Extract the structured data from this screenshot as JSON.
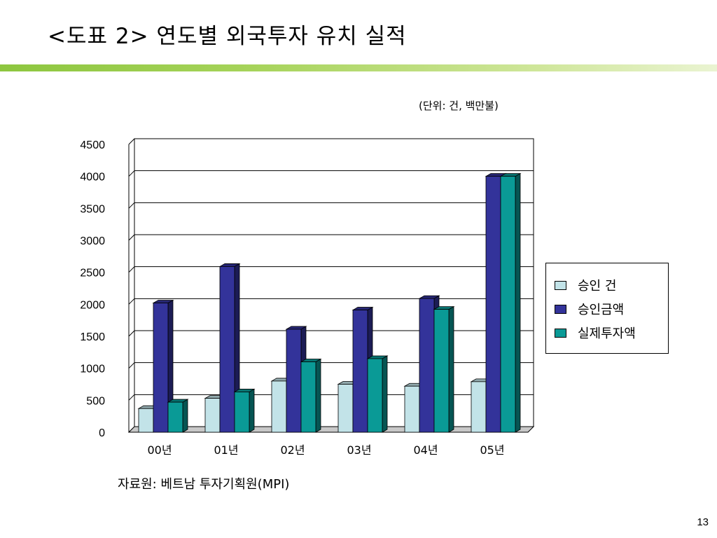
{
  "slide": {
    "title": "<도표 2> 연도별 외국투자 유치 실적",
    "unit_note": "(단위: 건, 백만불)",
    "source_note": "자료원: 베트남 투자기획원(MPI)",
    "page_number": "13"
  },
  "colors": {
    "title_bar": "#8dc63f",
    "series": [
      "#c2e3e8",
      "#33339a",
      "#0a9a96"
    ]
  },
  "chart_data": {
    "type": "bar",
    "categories": [
      "00년",
      "01년",
      "02년",
      "03년",
      "04년",
      "05년"
    ],
    "series": [
      {
        "name": "승인 건",
        "values": [
          370,
          530,
          800,
          750,
          720,
          790
        ]
      },
      {
        "name": "승인금액",
        "values": [
          2020,
          2590,
          1610,
          1910,
          2090,
          4000
        ]
      },
      {
        "name": "실제투자액",
        "values": [
          470,
          630,
          1100,
          1150,
          1920,
          4000
        ]
      }
    ],
    "yticks": [
      "0",
      "500",
      "1000",
      "1500",
      "2000",
      "2500",
      "3000",
      "3500",
      "4000",
      "4500"
    ],
    "ylim": [
      0,
      4500
    ],
    "grid": true,
    "legend_position": "right",
    "style": "3d-column"
  }
}
